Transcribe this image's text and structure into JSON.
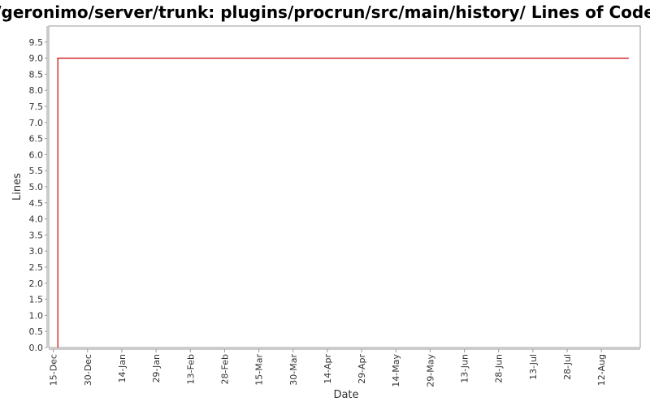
{
  "chart_data": {
    "type": "line",
    "title": "/geronimo/server/trunk: plugins/procrun/src/main/history/ Lines of Code",
    "xlabel": "Date",
    "ylabel": "Lines",
    "ylim": [
      0,
      10
    ],
    "y_ticks": [
      "0.0",
      "0.5",
      "1.0",
      "1.5",
      "2.0",
      "2.5",
      "3.0",
      "3.5",
      "4.0",
      "4.5",
      "5.0",
      "5.5",
      "6.0",
      "6.5",
      "7.0",
      "7.5",
      "8.0",
      "8.5",
      "9.0",
      "9.5"
    ],
    "x_ticks": [
      "15-Dec",
      "30-Dec",
      "14-Jan",
      "29-Jan",
      "13-Feb",
      "28-Feb",
      "15-Mar",
      "30-Mar",
      "14-Apr",
      "29-Apr",
      "14-May",
      "29-May",
      "13-Jun",
      "28-Jun",
      "13-Jul",
      "28-Jul",
      "12-Aug"
    ],
    "x_range": [
      "13-Dec",
      "29-Aug"
    ],
    "series": [
      {
        "color": "#cc0000",
        "points": [
          {
            "x": "17-Dec",
            "y": 0
          },
          {
            "x": "17-Dec",
            "y": 9
          },
          {
            "x": "24-Aug",
            "y": 9
          }
        ]
      }
    ],
    "grid": false,
    "legend": "none"
  }
}
